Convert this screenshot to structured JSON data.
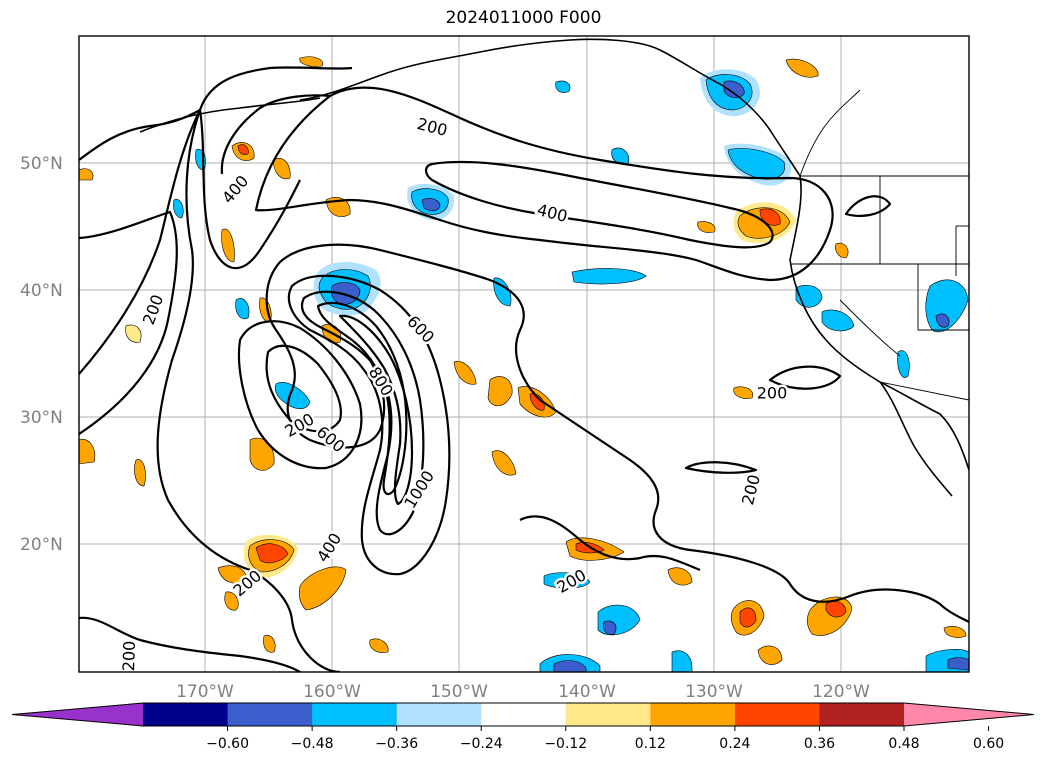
{
  "title": "2024011000 F000",
  "lat_labels": [
    "50°N",
    "40°N",
    "30°N",
    "20°N"
  ],
  "lon_labels": [
    "170°W",
    "160°W",
    "150°W",
    "140°W",
    "130°W",
    "120°W"
  ],
  "colorbar": {
    "ticks": [
      "−0.60",
      "−0.48",
      "−0.36",
      "−0.24",
      "−0.12",
      "0.12",
      "0.24",
      "0.36",
      "0.48",
      "0.60"
    ],
    "colors": [
      "#9932cc",
      "#00008b",
      "#3a5fcd",
      "#00bfff",
      "#b0e2ff",
      "#ffffff",
      "#ffe98a",
      "#ffa500",
      "#ff4500",
      "#b22222",
      "#ff88aa"
    ]
  },
  "contour_labels": [
    "200",
    "400",
    "200",
    "400",
    "600",
    "800",
    "1000",
    "200",
    "600",
    "400",
    "200",
    "200",
    "200",
    "200",
    "200"
  ],
  "colors": {
    "ocean_bg": "#ffffff",
    "grid": "#b0b0b0",
    "contour": "#000000",
    "coast": "#000000"
  }
}
